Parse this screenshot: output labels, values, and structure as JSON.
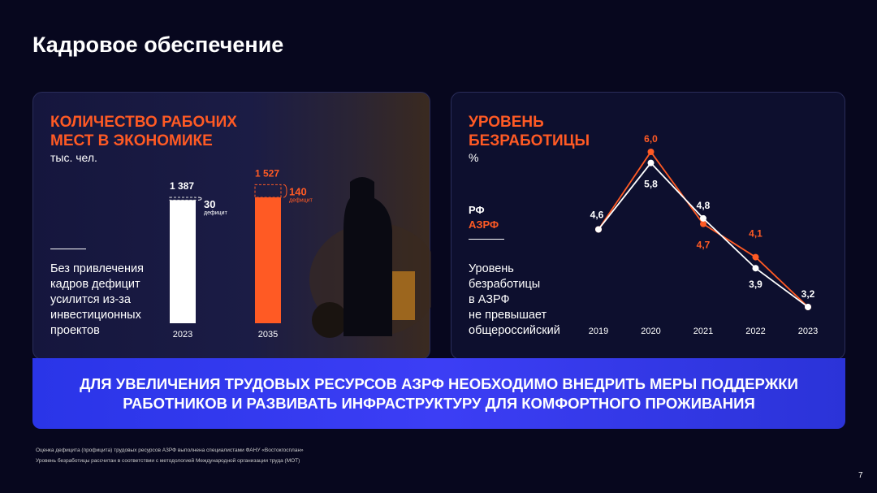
{
  "title": "Кадровое обеспечение",
  "left": {
    "title_line1": "КОЛИЧЕСТВО РАБОЧИХ",
    "title_line2": "МЕСТ В ЭКОНОМИКЕ",
    "unit": "тыс. чел.",
    "note": [
      "Без привлечения",
      "кадров дефицит",
      "усилится из-за",
      "инвестиционных",
      "проектов"
    ]
  },
  "right": {
    "title_line1": "УРОВЕНЬ",
    "title_line2": "БЕЗРАБОТИЦЫ",
    "unit": "%",
    "legend_rf": "РФ",
    "legend_azrf": "АЗРФ",
    "note": [
      "Уровень",
      "безработицы",
      "в АЗРФ",
      "не превышает",
      "общероссийский"
    ]
  },
  "banner": {
    "line1": "ДЛЯ УВЕЛИЧЕНИЯ ТРУДОВЫХ РЕСУРСОВ АЗРФ НЕОБХОДИМО ВНЕДРИТЬ МЕРЫ ПОДДЕРЖКИ",
    "line2": "РАБОТНИКОВ И РАЗВИВАТЬ ИНФРАСТРУКТУРУ ДЛЯ КОМФОРТНОГО ПРОЖИВАНИЯ"
  },
  "footnotes": [
    "Оценка дефицита (профицита) трудовых ресурсов АЗРФ выполнена специалистами ФАНУ «Востокгосплан»",
    "Уровень безработицы рассчитан в соответствии с методологией Международной организации труда (МОТ)"
  ],
  "page_number": "7",
  "colors": {
    "orange": "#ff5a24",
    "white": "#ffffff",
    "banner": "#3a3ef2"
  },
  "chart_data": [
    {
      "type": "bar",
      "categories": [
        "2023",
        "2035"
      ],
      "values": [
        1387,
        1527
      ],
      "value_labels": [
        "1 387",
        "1 527"
      ],
      "deficit": [
        30,
        140
      ],
      "deficit_labels": [
        "30",
        "140"
      ],
      "deficit_caption": "дефицит",
      "colors": [
        "#ffffff",
        "#ff5a24"
      ],
      "unit": "тыс. чел."
    },
    {
      "type": "line",
      "x": [
        "2019",
        "2020",
        "2021",
        "2022",
        "2023"
      ],
      "unit": "%",
      "series": [
        {
          "name": "РФ",
          "color": "#ffffff",
          "values": [
            4.6,
            5.8,
            4.8,
            3.9,
            3.2
          ],
          "labels": [
            "4,6",
            "5,8",
            "4,8",
            "3,9",
            "3,2"
          ]
        },
        {
          "name": "АЗРФ",
          "color": "#ff5a24",
          "values": [
            4.6,
            6.0,
            4.7,
            4.1,
            3.2
          ],
          "labels": [
            "",
            "6,0",
            "4,7",
            "4,1",
            ""
          ]
        }
      ]
    }
  ]
}
